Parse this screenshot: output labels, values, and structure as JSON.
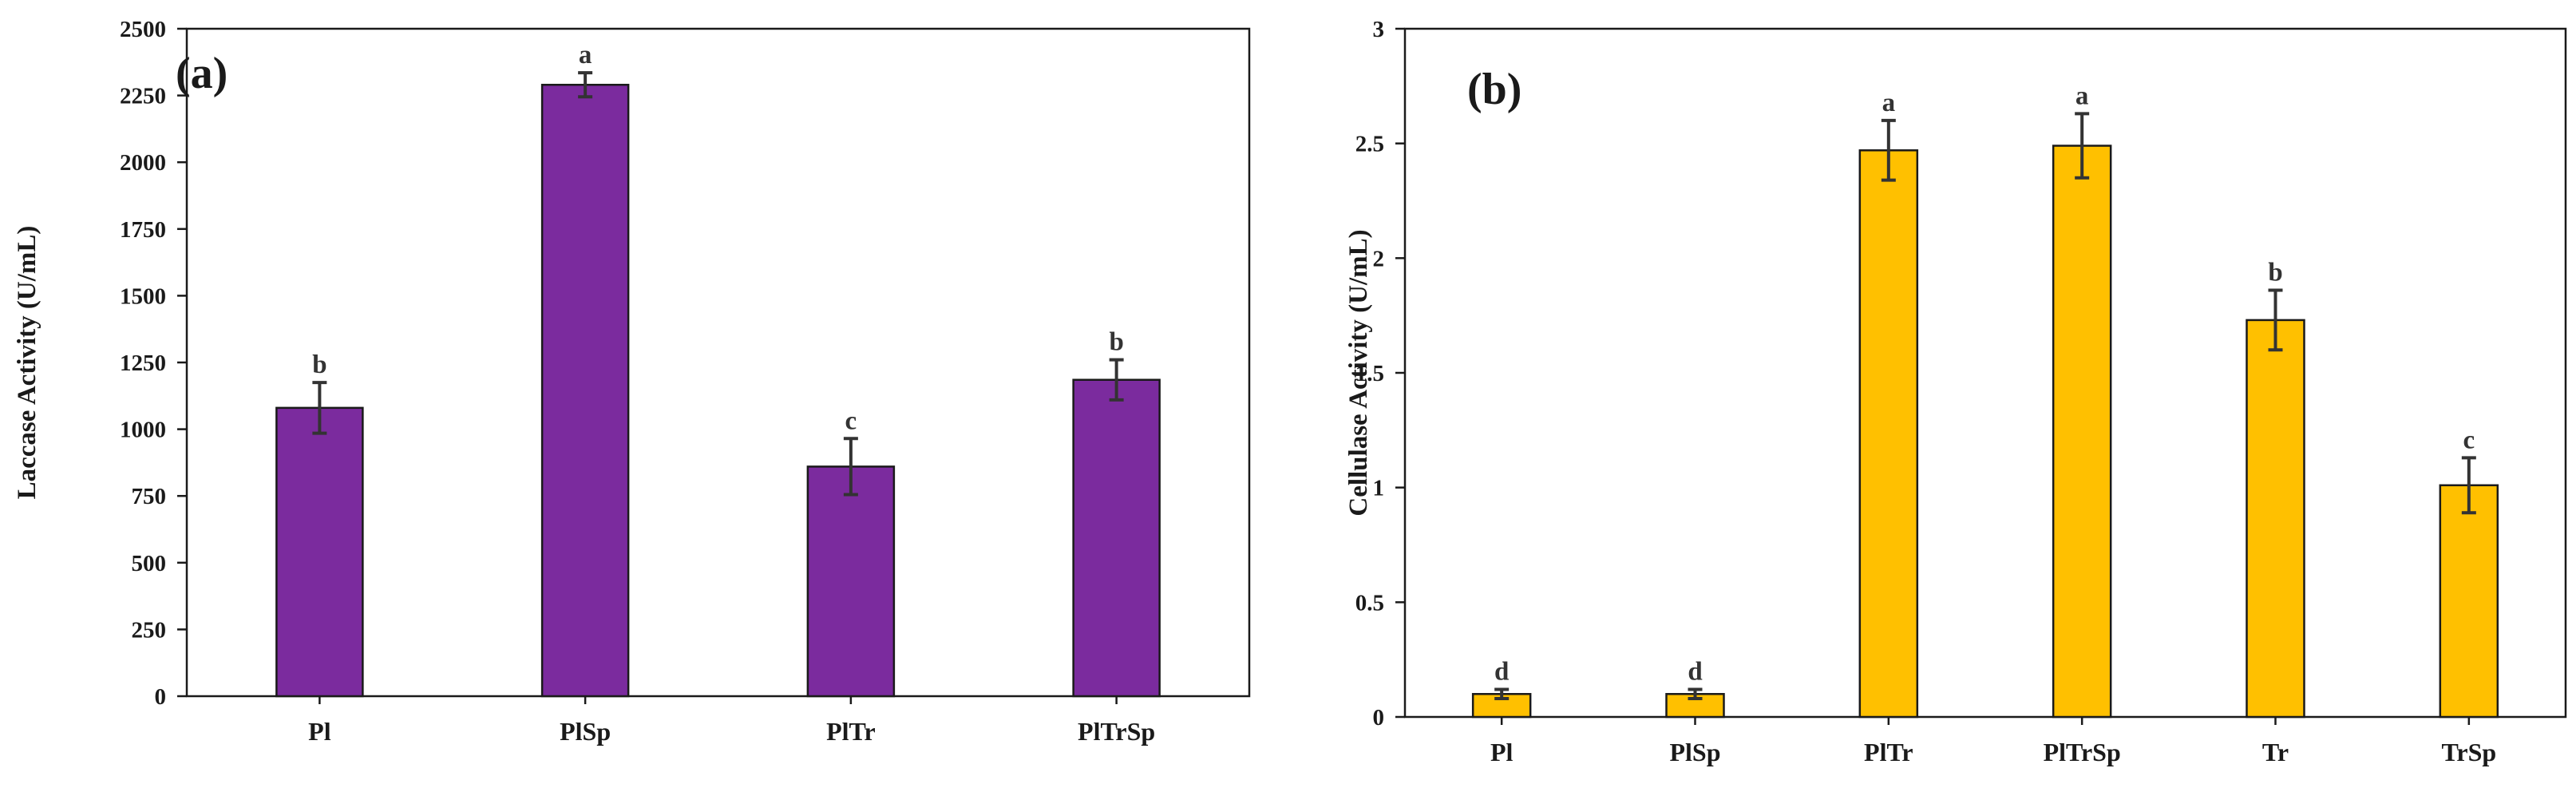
{
  "chart_data": [
    {
      "type": "bar",
      "panel_label": "(a)",
      "categories": [
        "Pl",
        "PlSp",
        "PlTr",
        "PlTrSp"
      ],
      "values": [
        1080,
        2290,
        860,
        1185
      ],
      "errors": [
        95,
        45,
        105,
        75
      ],
      "significance": [
        "b",
        "a",
        "c",
        "b"
      ],
      "title": "",
      "xlabel": "",
      "ylabel": "Laccase Activity (U/mL)",
      "ylim": [
        0,
        2500
      ],
      "yticks": [
        0,
        250,
        500,
        750,
        1000,
        1250,
        1500,
        1750,
        2000,
        2250,
        2500
      ],
      "bar_color": "#7B2B9E",
      "grid": false,
      "legend": "none"
    },
    {
      "type": "bar",
      "panel_label": "(b)",
      "categories": [
        "Pl",
        "PlSp",
        "PlTr",
        "PlTrSp",
        "Tr",
        "TrSp"
      ],
      "values": [
        0.1,
        0.1,
        2.47,
        2.49,
        1.73,
        1.01
      ],
      "errors": [
        0.02,
        0.02,
        0.13,
        0.14,
        0.13,
        0.12
      ],
      "significance": [
        "d",
        "d",
        "a",
        "a",
        "b",
        "c"
      ],
      "title": "",
      "xlabel": "",
      "ylabel": "Cellulase Activity (U/mL)",
      "ylim": [
        0,
        3
      ],
      "yticks": [
        "0",
        "0.5",
        "1",
        "1.5",
        "2",
        "2.5",
        "3"
      ],
      "bar_color": "#FFC000",
      "grid": false,
      "legend": "none"
    }
  ]
}
